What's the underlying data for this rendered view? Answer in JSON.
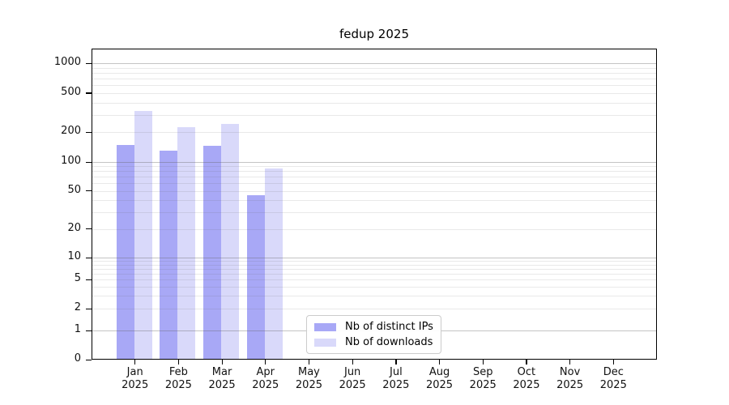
{
  "chart_data": {
    "type": "bar",
    "title": "fedup 2025",
    "x": {
      "categories": [
        "Jan",
        "Feb",
        "Mar",
        "Apr",
        "May",
        "Jun",
        "Jul",
        "Aug",
        "Sep",
        "Oct",
        "Nov",
        "Dec"
      ],
      "sublabel": "2025"
    },
    "y_axis": {
      "scale": "symlog",
      "ticks": [
        0,
        1,
        2,
        5,
        10,
        20,
        50,
        100,
        200,
        500,
        1000
      ],
      "range": [
        0,
        1400
      ],
      "grid": true
    },
    "series": [
      {
        "name": "Nb of distinct IPs",
        "color": "#a8a8f6",
        "values": [
          150,
          130,
          145,
          45,
          null,
          null,
          null,
          null,
          null,
          null,
          null,
          null
        ]
      },
      {
        "name": "Nb of downloads",
        "color": "#d9d9fa",
        "values": [
          330,
          225,
          245,
          86,
          null,
          null,
          null,
          null,
          null,
          null,
          null,
          null
        ]
      }
    ],
    "legend": {
      "position": "lower-center"
    },
    "colors": {
      "major_grid": "#c9c9c9",
      "minor_grid": "#ececec",
      "axis": "#000000"
    }
  }
}
